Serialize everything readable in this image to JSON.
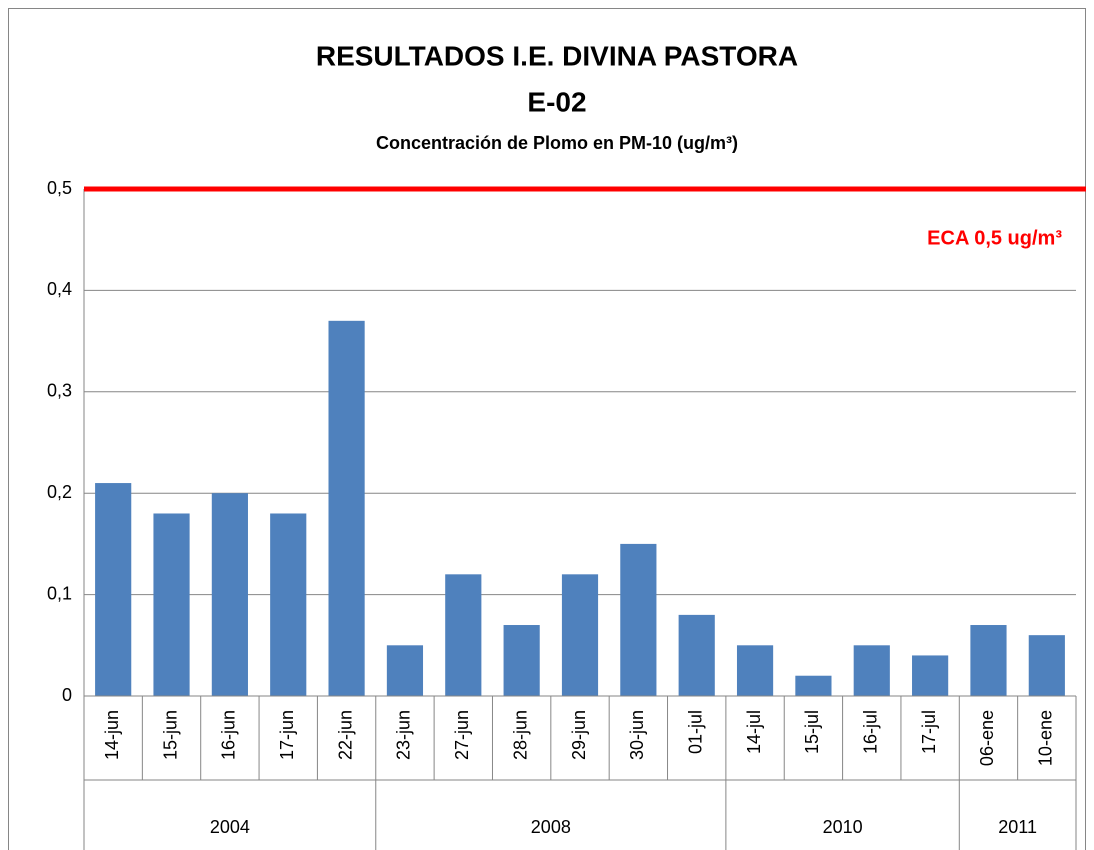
{
  "chart_data": {
    "type": "bar",
    "title": "RESULTADOS I.E. DIVINA PASTORA",
    "subtitle": "E-02",
    "description": "Concentración de Plomo en PM-10 (ug/m³)",
    "color": "#4f81bd",
    "groups": [
      {
        "name": "2004",
        "categories": [
          "14-jun",
          "15-jun",
          "16-jun",
          "17-jun",
          "22-jun"
        ],
        "values": [
          0.21,
          0.18,
          0.2,
          0.18,
          0.37
        ]
      },
      {
        "name": "2008",
        "categories": [
          "23-jun",
          "27-jun",
          "28-jun",
          "29-jun",
          "30-jun",
          "01-jul"
        ],
        "values": [
          0.05,
          0.12,
          0.07,
          0.12,
          0.15,
          0.08
        ]
      },
      {
        "name": "2010",
        "categories": [
          "14-jul",
          "15-jul",
          "16-jul",
          "17-jul"
        ],
        "values": [
          0.05,
          0.02,
          0.05,
          0.04
        ]
      },
      {
        "name": "2011",
        "categories": [
          "06-ene",
          "10-ene"
        ],
        "values": [
          0.07,
          0.06
        ]
      }
    ],
    "ylim": [
      0,
      0.5
    ],
    "yticks": [
      0,
      {
        "value": 0.1,
        "label": "0,1"
      },
      {
        "value": 0.2,
        "label": "0,2"
      },
      {
        "value": 0.3,
        "label": "0,3"
      },
      {
        "value": 0.4,
        "label": "0,4"
      },
      {
        "value": 0.5,
        "label": "0,5"
      }
    ],
    "grid": true,
    "reference_line": {
      "value": 0.5,
      "label": "ECA 0,5 ug/m³",
      "color": "#ff0000"
    }
  }
}
